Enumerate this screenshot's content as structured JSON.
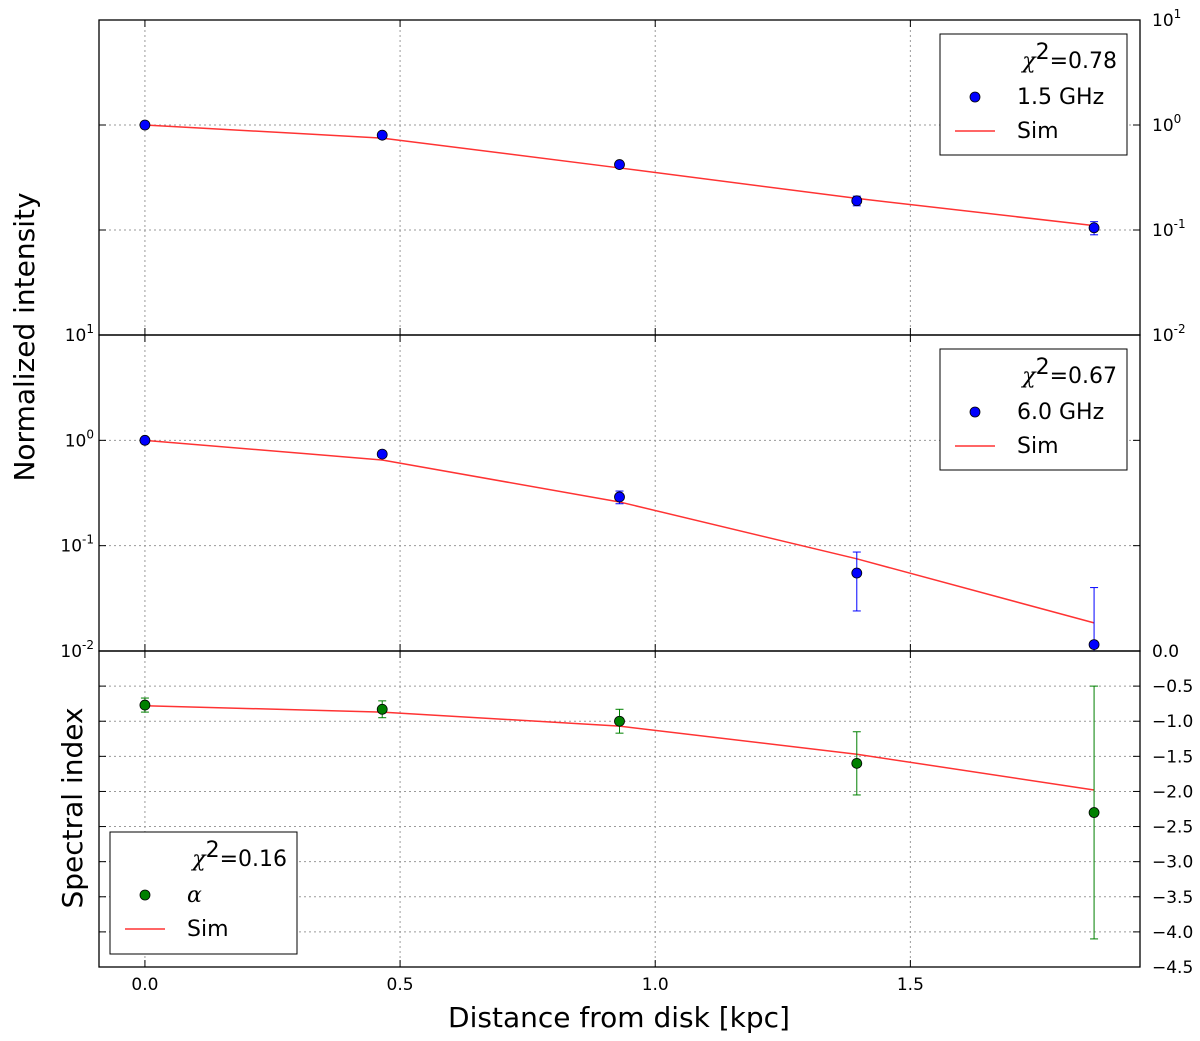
{
  "chart_data": [
    {
      "type": "scatter",
      "panel": "top",
      "yscale": "log",
      "ylim": [
        0.01,
        10
      ],
      "y_tick_side": "right",
      "legend": {
        "placement": "top-right",
        "chi2_value": "=0.78",
        "points_label": "1.5 GHz",
        "line_label": "Sim"
      },
      "series": [
        {
          "name": "1.5 GHz",
          "kind": "points",
          "color": "#0000ff",
          "x": [
            0.0,
            0.465,
            0.93,
            1.395,
            1.86
          ],
          "y": [
            1.0,
            0.8,
            0.42,
            0.19,
            0.105
          ],
          "err": [
            0.03,
            0.03,
            0.03,
            0.02,
            0.015
          ]
        },
        {
          "name": "Sim",
          "kind": "line",
          "color": "#ff3333",
          "x": [
            0.0,
            0.465,
            0.93,
            1.395,
            1.86
          ],
          "y": [
            1.0,
            0.75,
            0.39,
            0.2,
            0.11
          ]
        }
      ]
    },
    {
      "type": "scatter",
      "panel": "middle",
      "yscale": "log",
      "ylim": [
        0.01,
        10
      ],
      "y_tick_side": "left",
      "legend": {
        "placement": "top-right",
        "chi2_value": "=0.67",
        "points_label": "6.0 GHz",
        "line_label": "Sim"
      },
      "series": [
        {
          "name": "6.0 GHz",
          "kind": "points",
          "color": "#0000ff",
          "x": [
            0.0,
            0.465,
            0.93,
            1.395,
            1.86
          ],
          "y": [
            1.0,
            0.74,
            0.29,
            0.055,
            0.0115
          ],
          "err_low": [
            0.04,
            0.05,
            0.04,
            0.031,
            0.0015
          ],
          "err_high": [
            0.04,
            0.05,
            0.04,
            0.032,
            0.0285
          ]
        },
        {
          "name": "Sim",
          "kind": "line",
          "color": "#ff3333",
          "x": [
            0.0,
            0.465,
            0.93,
            1.395,
            1.86
          ],
          "y": [
            1.0,
            0.65,
            0.26,
            0.075,
            0.0185
          ]
        }
      ]
    },
    {
      "type": "scatter",
      "panel": "bottom",
      "yscale": "linear",
      "ylim": [
        -4.5,
        0.0
      ],
      "y_tick_side": "right",
      "legend": {
        "placement": "bottom-left",
        "chi2_value": "=0.16",
        "points_label": "α",
        "line_label": "Sim"
      },
      "series": [
        {
          "name": "α",
          "kind": "points",
          "color": "#008000",
          "x": [
            0.0,
            0.465,
            0.93,
            1.395,
            1.86
          ],
          "y": [
            -0.77,
            -0.83,
            -1.0,
            -1.6,
            -2.3
          ],
          "err": [
            0.1,
            0.12,
            0.17,
            0.45,
            1.8
          ]
        },
        {
          "name": "Sim",
          "kind": "line",
          "color": "#ff3333",
          "x": [
            0.0,
            0.465,
            0.93,
            1.395,
            1.86
          ],
          "y": [
            -0.78,
            -0.87,
            -1.07,
            -1.47,
            -1.98
          ]
        }
      ]
    }
  ],
  "axes": {
    "xlabel": "Distance from disk [kpc]",
    "ylabel_top": "Normalized intensity",
    "ylabel_bottom": "Spectral index",
    "xlim": [
      -0.09,
      1.95
    ],
    "x_ticks": [
      0.0,
      0.5,
      1.0,
      1.5
    ],
    "x_tick_labels": [
      "0.0",
      "0.5",
      "1.0",
      "1.5"
    ],
    "log_tick_values": [
      10,
      1,
      0.1,
      0.01
    ],
    "log_tick_base": "10",
    "log_tick_exponents": [
      "1",
      "0",
      "-1",
      "-2"
    ],
    "linear_tick_values": [
      0.0,
      -0.5,
      -1.0,
      -1.5,
      -2.0,
      -2.5,
      -3.0,
      -3.5,
      -4.0,
      -4.5
    ],
    "linear_tick_labels": [
      "0.0",
      "−0.5",
      "−1.0",
      "−1.5",
      "−2.0",
      "−2.5",
      "−3.0",
      "−3.5",
      "−4.0",
      "−4.5"
    ],
    "chi_symbol": "χ",
    "chi_exponent": "2"
  },
  "colors": {
    "points_blue": "#0000ff",
    "points_green": "#008000",
    "sim_line": "#ff3333",
    "grid": "#9a9a9a"
  }
}
